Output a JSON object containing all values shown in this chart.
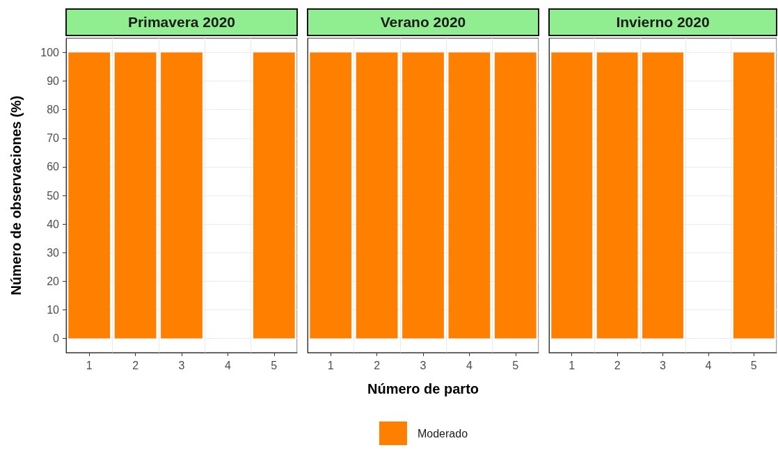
{
  "chart_data": [
    {
      "type": "bar",
      "title": "Primavera 2020",
      "ylabel": "Número de observaciones (%)",
      "categories": [
        "1",
        "2",
        "3",
        "4",
        "5"
      ],
      "series": [
        {
          "color": "#ff7f00",
          "values": [
            100,
            100,
            100,
            null,
            100
          ]
        }
      ],
      "ylim": [
        -5,
        105
      ],
      "yticks": [
        0,
        10,
        20,
        30,
        40,
        50,
        60,
        70,
        80,
        90,
        100
      ],
      "grid": true,
      "legend": false
    },
    {
      "type": "bar",
      "title": "Verano 2020",
      "xlabel": "Número de parto",
      "categories": [
        "1",
        "2",
        "3",
        "4",
        "5"
      ],
      "series": [
        {
          "name": "Moderado",
          "color": "#ff7f00",
          "values": [
            100,
            100,
            100,
            100,
            100
          ]
        }
      ],
      "ylim": [
        -5,
        105
      ],
      "yticks": [
        0,
        10,
        20,
        30,
        40,
        50,
        60,
        70,
        80,
        90,
        100
      ],
      "grid": true,
      "legend": "bottom",
      "tick_labels": "x"
    },
    {
      "type": "bar",
      "title": "Invierno 2020",
      "categories": [
        "1",
        "2",
        "3",
        "4",
        "5"
      ],
      "series": [
        {
          "color": "#ff7f00",
          "values": [
            100,
            100,
            100,
            null,
            100
          ]
        }
      ],
      "ylim": [
        -5,
        105
      ],
      "yticks": [
        0,
        10,
        20,
        30,
        40,
        50,
        60,
        70,
        80,
        90,
        100
      ],
      "grid": true,
      "legend": false,
      "tick_labels": "x"
    }
  ]
}
